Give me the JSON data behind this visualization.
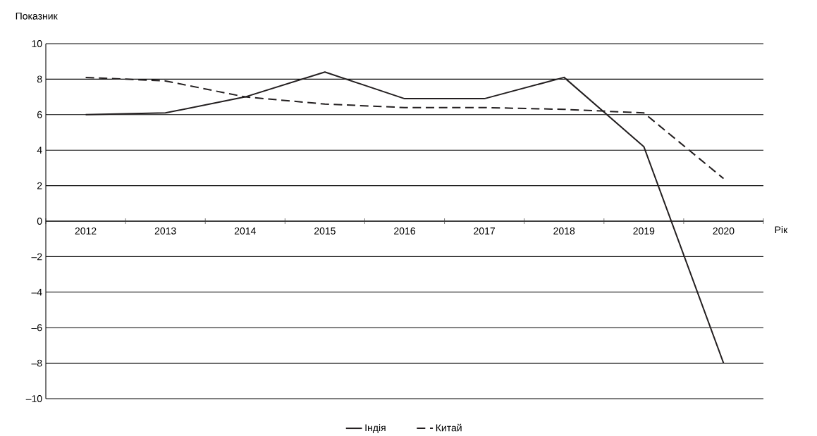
{
  "chart_data": {
    "type": "line",
    "xlabel": "Рік",
    "ylabel": "Показник",
    "categories": [
      "2012",
      "2013",
      "2014",
      "2015",
      "2016",
      "2017",
      "2018",
      "2019",
      "2020"
    ],
    "series": [
      {
        "name": "Індія",
        "color": "#231f20",
        "line_style": "solid",
        "values": [
          6.0,
          6.1,
          7.0,
          8.4,
          6.9,
          6.9,
          8.1,
          4.2,
          -8.0
        ]
      },
      {
        "name": "Китай",
        "color": "#231f20",
        "line_style": "dashed",
        "values": [
          8.1,
          7.9,
          7.0,
          6.6,
          6.4,
          6.4,
          6.3,
          6.1,
          2.4
        ]
      }
    ],
    "ylim": [
      -10,
      10
    ],
    "yticks": [
      {
        "value": -10,
        "label": "–10"
      },
      {
        "value": -8,
        "label": "–8"
      },
      {
        "value": -6,
        "label": "–6"
      },
      {
        "value": -4,
        "label": "–4"
      },
      {
        "value": -2,
        "label": "–2"
      },
      0,
      2,
      4,
      6,
      8,
      10
    ],
    "grid": "y",
    "legend": "bottom"
  }
}
